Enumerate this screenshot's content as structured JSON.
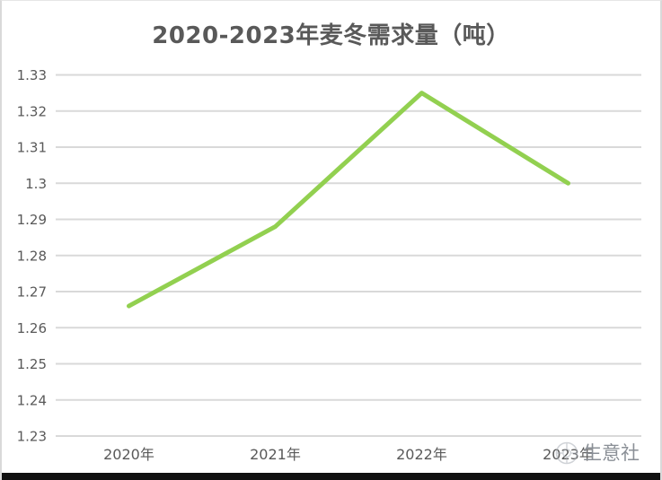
{
  "chart_data": {
    "type": "line",
    "title": "2020-2023年麦冬需求量（吨）",
    "categories": [
      "2020年",
      "2021年",
      "2022年",
      "2023年"
    ],
    "series": [
      {
        "values": [
          1.266,
          1.288,
          1.325,
          1.3
        ],
        "color": "#92d050"
      }
    ],
    "ylim": [
      1.23,
      1.33
    ],
    "ytick_step": 0.01,
    "ytick_labels": [
      "1.33",
      "1.32",
      "1.31",
      "1.3",
      "1.29",
      "1.28",
      "1.27",
      "1.26",
      "1.25",
      "1.24",
      "1.23"
    ],
    "xlabel": "",
    "ylabel": "",
    "grid": true,
    "legend_position": "none",
    "gridline_color": "#d9d9d9",
    "axis_label_color": "#595959",
    "title_color": "#595959"
  },
  "watermark": {
    "text": "生意社",
    "color": "#8a8f96",
    "icon": "compass-logo"
  },
  "page": {
    "background": "#ffffff",
    "frame_border_color": "#d9d9d9",
    "bottom_bar_color": "#111111"
  }
}
